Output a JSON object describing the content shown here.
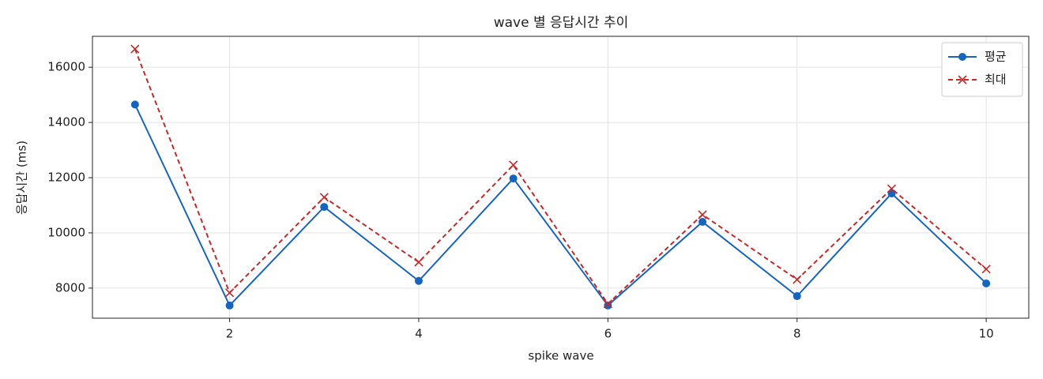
{
  "chart_data": {
    "type": "line",
    "title": "wave 별 응답시간 추이",
    "x_label": "spike wave",
    "y_label": "응답시간 (ms)",
    "x": [
      1,
      2,
      3,
      4,
      5,
      6,
      7,
      8,
      9,
      10
    ],
    "series": [
      {
        "name": "평균",
        "color": "#1565c0",
        "marker": "circle",
        "dashed": false,
        "values": [
          14650,
          7370,
          10940,
          8260,
          11970,
          7370,
          10400,
          7710,
          11430,
          8170
        ]
      },
      {
        "name": "최대",
        "color": "#c62828",
        "marker": "x",
        "dashed": true,
        "values": [
          16660,
          7830,
          11290,
          8940,
          12460,
          7430,
          10660,
          8310,
          11600,
          8690
        ]
      }
    ],
    "xlim": [
      0.55,
      10.45
    ],
    "xticks": [
      2,
      4,
      6,
      8,
      10
    ],
    "ylim": [
      6910,
      17120
    ],
    "yticks": [
      8000,
      10000,
      12000,
      14000,
      16000
    ],
    "grid": true,
    "legend": "upper right"
  }
}
